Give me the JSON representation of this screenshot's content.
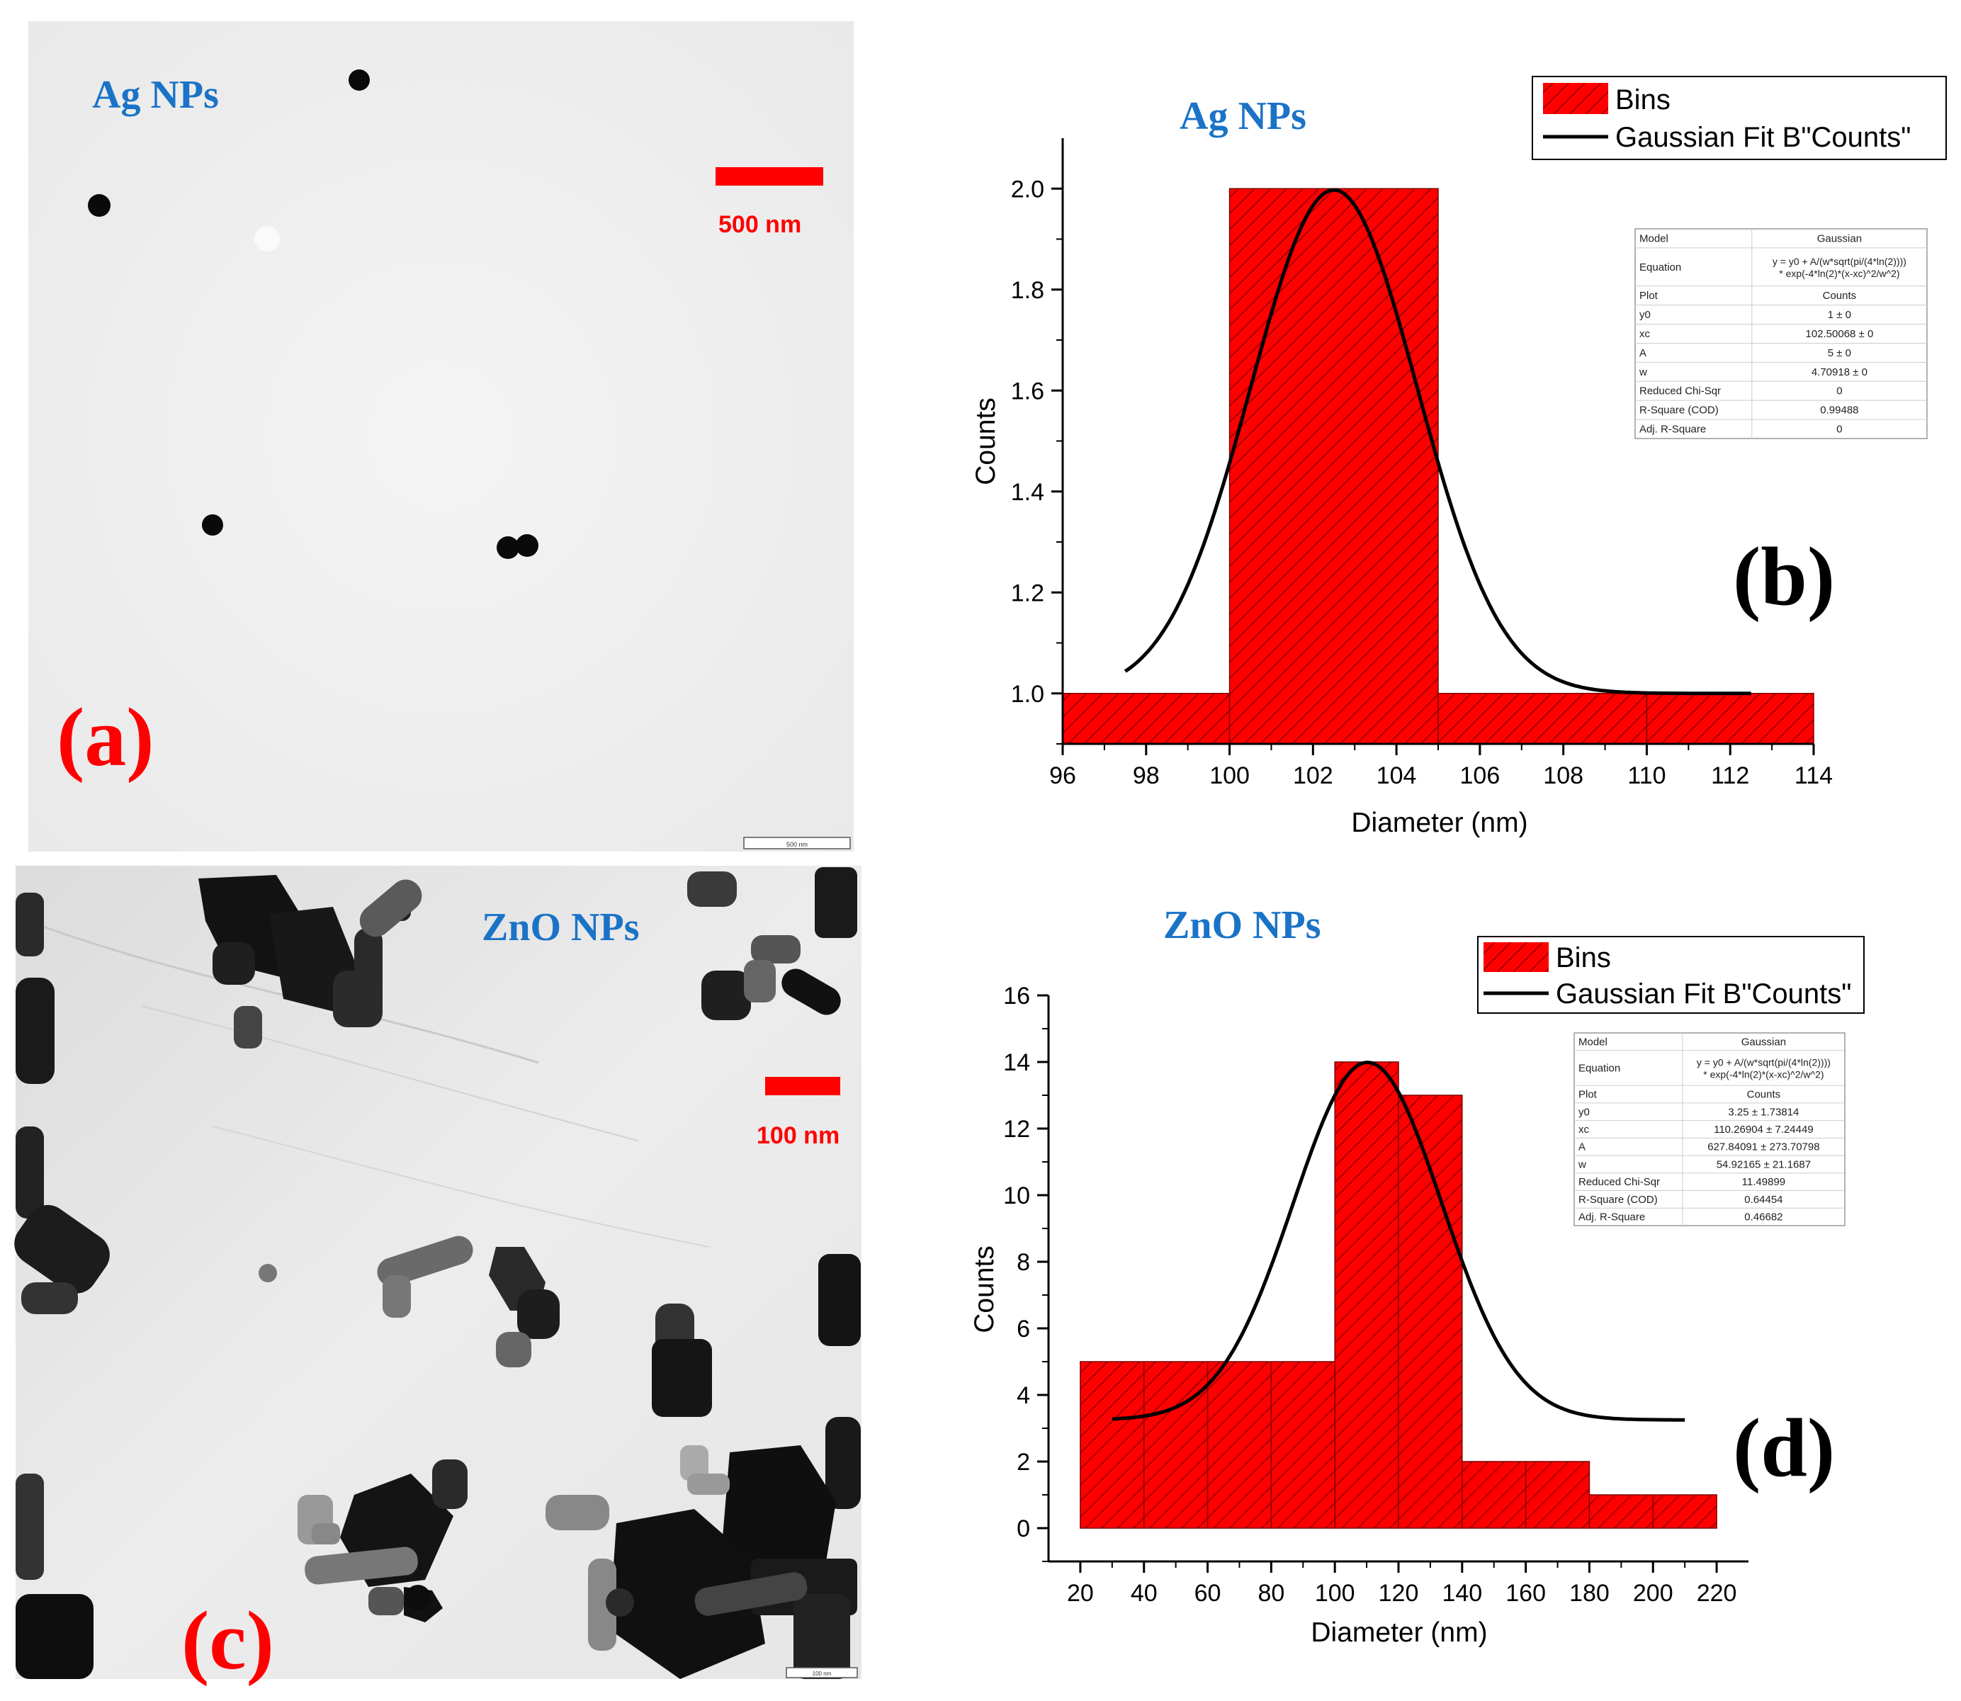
{
  "panels": {
    "a": {
      "letter": "(a)",
      "title": "Ag NPs",
      "scale_label": "500 nm",
      "micro_scale_label": "500 nm"
    },
    "b": {
      "letter": "(b)",
      "title": "Ag NPs"
    },
    "c": {
      "letter": "(c)",
      "title": "ZnO NPs",
      "scale_label": "100 nm",
      "micro_scale_label": "100 nm"
    },
    "d": {
      "letter": "(d)",
      "title": "ZnO NPs"
    }
  },
  "colors": {
    "bar_fill": "#ff0000",
    "hatch": "#5a0000",
    "fit_line": "#000000",
    "title_blue": "#1a73c7",
    "label_red": "#ff0000"
  },
  "chart_data": [
    {
      "id": "b",
      "type": "bar",
      "title": "",
      "xlabel": "Diameter (nm)",
      "ylabel": "Counts",
      "xlim": [
        96,
        114
      ],
      "ylim": [
        0.9,
        2.1
      ],
      "xticks": [
        "96",
        "98",
        "100",
        "102",
        "104",
        "106",
        "108",
        "110",
        "112",
        "114"
      ],
      "yticks": [
        "1.0",
        "1.2",
        "1.4",
        "1.6",
        "1.8",
        "2.0"
      ],
      "bins": [
        {
          "x0": 96,
          "x1": 100,
          "count": 1
        },
        {
          "x0": 100,
          "x1": 105,
          "count": 2
        },
        {
          "x0": 105,
          "x1": 110,
          "count": 1
        },
        {
          "x0": 110,
          "x1": 114,
          "count": 1
        }
      ],
      "legend": {
        "bins": "Bins",
        "fit": "Gaussian Fit B\"Counts\""
      },
      "fit": {
        "y0": 1,
        "xc": 102.50068,
        "A": 5,
        "w": 4.70918,
        "x_range": [
          97.5,
          112.5
        ]
      },
      "fit_table": [
        [
          "Model",
          "Gaussian"
        ],
        [
          "Equation",
          "y = y0 + A/(w*sqrt(pi/(4*ln(2))))",
          "* exp(-4*ln(2)*(x-xc)^2/w^2)"
        ],
        [
          "Plot",
          "Counts"
        ],
        [
          "y0",
          "1 ± 0"
        ],
        [
          "xc",
          "102.50068 ± 0"
        ],
        [
          "A",
          "5 ± 0"
        ],
        [
          "w",
          "4.70918 ± 0"
        ],
        [
          "Reduced Chi-Sqr",
          "0"
        ],
        [
          "R-Square (COD)",
          "0.99488"
        ],
        [
          "Adj. R-Square",
          "0"
        ]
      ]
    },
    {
      "id": "d",
      "type": "bar",
      "title": "",
      "xlabel": "Diameter (nm)",
      "ylabel": "Counts",
      "xlim": [
        10,
        230
      ],
      "ylim": [
        -1,
        16
      ],
      "xticks": [
        "20",
        "40",
        "60",
        "80",
        "100",
        "120",
        "140",
        "160",
        "180",
        "200",
        "220"
      ],
      "yticks": [
        "0",
        "2",
        "4",
        "6",
        "8",
        "10",
        "12",
        "14",
        "16"
      ],
      "bins": [
        {
          "x0": 20,
          "x1": 100,
          "count": 5
        },
        {
          "x0": 100,
          "x1": 120,
          "count": 14
        },
        {
          "x0": 120,
          "x1": 140,
          "count": 13
        },
        {
          "x0": 140,
          "x1": 180,
          "count": 2
        },
        {
          "x0": 180,
          "x1": 220,
          "count": 1
        }
      ],
      "legend": {
        "bins": "Bins",
        "fit": "Gaussian Fit B\"Counts\""
      },
      "fit": {
        "y0": 3.25,
        "xc": 110.26904,
        "A": 627.84091,
        "w": 54.92165,
        "x_range": [
          30,
          210
        ]
      },
      "fit_table": [
        [
          "Model",
          "Gaussian"
        ],
        [
          "Equation",
          "y = y0 + A/(w*sqrt(pi/(4*ln(2))))",
          "* exp(-4*ln(2)*(x-xc)^2/w^2)"
        ],
        [
          "Plot",
          "Counts"
        ],
        [
          "y0",
          "3.25 ± 1.73814"
        ],
        [
          "xc",
          "110.26904 ± 7.24449"
        ],
        [
          "A",
          "627.84091 ± 273.70798"
        ],
        [
          "w",
          "54.92165 ± 21.1687"
        ],
        [
          "Reduced Chi-Sqr",
          "11.49899"
        ],
        [
          "R-Square (COD)",
          "0.64454"
        ],
        [
          "Adj. R-Square",
          "0.46682"
        ]
      ]
    }
  ]
}
